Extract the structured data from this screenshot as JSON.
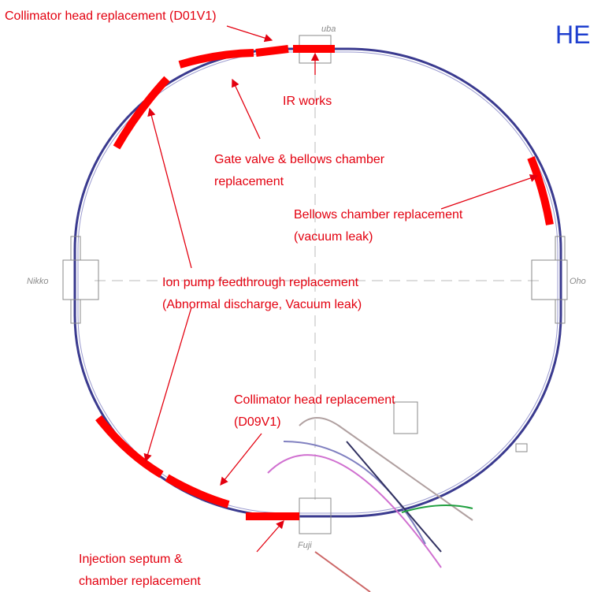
{
  "title": "HE",
  "places": {
    "top": "uba",
    "left": "Nikko",
    "right": "Oho",
    "bottom": "Fuji"
  },
  "annotations": [
    {
      "lines": [
        "Collimator head replacement (D01V1)"
      ]
    },
    {
      "lines": [
        "IR works"
      ]
    },
    {
      "lines": [
        "Gate valve & bellows chamber",
        "replacement"
      ]
    },
    {
      "lines": [
        "Bellows chamber replacement",
        "(vacuum leak)"
      ]
    },
    {
      "lines": [
        "Ion pump feedthrough replacement",
        "(Abnormal discharge, Vacuum leak)"
      ]
    },
    {
      "lines": [
        "Collimator head replacement",
        "(D09V1)"
      ]
    },
    {
      "lines": [
        "Injection septum &",
        "chamber replacement"
      ]
    }
  ]
}
